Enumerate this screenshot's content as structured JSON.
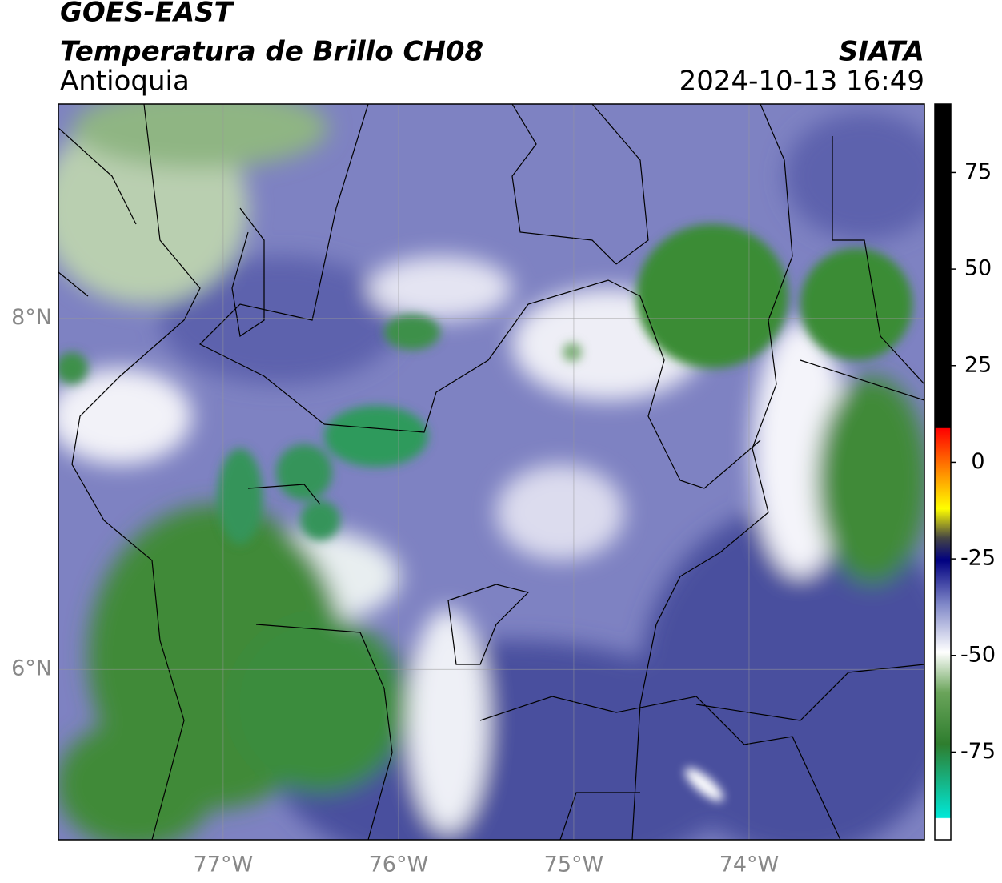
{
  "header": {
    "title": "GOES-EAST",
    "subtitle": "Temperatura de Brillo CH08",
    "region": "Antioquia",
    "source": "SIATA",
    "datetime": "2024-10-13 16:49"
  },
  "map": {
    "xlim": [
      -77.94,
      -73.0
    ],
    "ylim": [
      5.03,
      9.22
    ],
    "xticks": [
      {
        "value": -77,
        "label": "77°W"
      },
      {
        "value": -76,
        "label": "76°W"
      },
      {
        "value": -75,
        "label": "75°W"
      },
      {
        "value": -74,
        "label": "74°W"
      }
    ],
    "yticks": [
      {
        "value": 8,
        "label": "8°N"
      },
      {
        "value": 6,
        "label": "6°N"
      }
    ]
  },
  "colorbar": {
    "lim": [
      -97.7,
      92.7
    ],
    "ticks": [
      75,
      50,
      25,
      0,
      -25,
      -50,
      -75
    ]
  }
}
